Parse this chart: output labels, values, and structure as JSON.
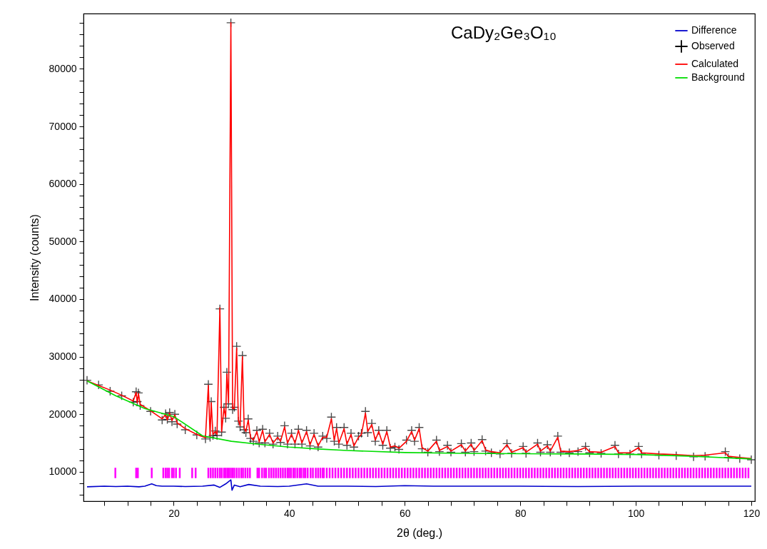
{
  "chart_data": {
    "type": "line",
    "title": "CaDy₂Ge₃O₁₀",
    "xlabel": "2θ (deg.)",
    "ylabel": "Intensity (counts)",
    "xlim": [
      5,
      120
    ],
    "ylim": [
      4900,
      89600
    ],
    "xticks": [
      {
        "value": 8,
        "label": null
      },
      {
        "value": 12,
        "label": null
      },
      {
        "value": 16,
        "label": null
      },
      20,
      {
        "value": 24,
        "label": null
      },
      {
        "value": 28,
        "label": null
      },
      {
        "value": 32,
        "label": null
      },
      {
        "value": 36,
        "label": null
      },
      40,
      {
        "value": 44,
        "label": null
      },
      {
        "value": 48,
        "label": null
      },
      {
        "value": 52,
        "label": null
      },
      {
        "value": 56,
        "label": null
      },
      60,
      {
        "value": 64,
        "label": null
      },
      {
        "value": 68,
        "label": null
      },
      {
        "value": 72,
        "label": null
      },
      {
        "value": 76,
        "label": null
      },
      80,
      {
        "value": 84,
        "label": null
      },
      {
        "value": 88,
        "label": null
      },
      {
        "value": 92,
        "label": null
      },
      {
        "value": 96,
        "label": null
      },
      100,
      {
        "value": 104,
        "label": null
      },
      {
        "value": 108,
        "label": null
      },
      {
        "value": 112,
        "label": null
      },
      {
        "value": 116,
        "label": null
      },
      120
    ],
    "yticks": [
      {
        "value": 6000,
        "label": null
      },
      {
        "value": 8000,
        "label": null
      },
      10000,
      {
        "value": 12000,
        "label": null
      },
      {
        "value": 14000,
        "label": null
      },
      {
        "value": 16000,
        "label": null
      },
      {
        "value": 18000,
        "label": null
      },
      20000,
      {
        "value": 22000,
        "label": null
      },
      {
        "value": 24000,
        "label": null
      },
      {
        "value": 26000,
        "label": null
      },
      {
        "value": 28000,
        "label": null
      },
      30000,
      {
        "value": 32000,
        "label": null
      },
      {
        "value": 34000,
        "label": null
      },
      {
        "value": 36000,
        "label": null
      },
      {
        "value": 38000,
        "label": null
      },
      40000,
      {
        "value": 42000,
        "label": null
      },
      {
        "value": 44000,
        "label": null
      },
      {
        "value": 46000,
        "label": null
      },
      {
        "value": 48000,
        "label": null
      },
      50000,
      {
        "value": 52000,
        "label": null
      },
      {
        "value": 54000,
        "label": null
      },
      {
        "value": 56000,
        "label": null
      },
      {
        "value": 58000,
        "label": null
      },
      60000,
      {
        "value": 62000,
        "label": null
      },
      {
        "value": 64000,
        "label": null
      },
      {
        "value": 66000,
        "label": null
      },
      {
        "value": 68000,
        "label": null
      },
      70000,
      {
        "value": 72000,
        "label": null
      },
      {
        "value": 74000,
        "label": null
      },
      {
        "value": 76000,
        "label": null
      },
      {
        "value": 78000,
        "label": null
      },
      80000,
      {
        "value": 82000,
        "label": null
      },
      {
        "value": 84000,
        "label": null
      },
      {
        "value": 86000,
        "label": null
      },
      {
        "value": 88000,
        "label": null
      }
    ],
    "grid": false,
    "legend": "top right",
    "series": [
      {
        "name": "Difference",
        "color": "#0000cc",
        "x": [
          5,
          8,
          10,
          12,
          14,
          15,
          16.2,
          17,
          18,
          20,
          22,
          25,
          27,
          28,
          29,
          29.9,
          30.1,
          30.5,
          31.5,
          33,
          35,
          38,
          40,
          43,
          45,
          50,
          55,
          60,
          65,
          70,
          80,
          90,
          100,
          110,
          120
        ],
        "values": [
          7400,
          7500,
          7450,
          7500,
          7400,
          7500,
          7900,
          7600,
          7500,
          7500,
          7450,
          7500,
          7700,
          7300,
          7900,
          8600,
          6800,
          7700,
          7400,
          7800,
          7500,
          7450,
          7500,
          7900,
          7500,
          7500,
          7450,
          7600,
          7500,
          7500,
          7500,
          7450,
          7500,
          7500,
          7500
        ]
      },
      {
        "name": "Observed",
        "type": "scatter",
        "marker": "cross",
        "color": "#000000",
        "x": [
          5,
          7,
          9,
          11,
          13,
          13.5,
          13.7,
          13.9,
          14.2,
          16,
          18,
          18.6,
          18.9,
          19.3,
          19.7,
          20.2,
          20.6,
          22,
          24,
          25.5,
          26.0,
          26.3,
          26.5,
          26.8,
          27.2,
          27.5,
          28.0,
          28.3,
          28.7,
          29.0,
          29.2,
          29.5,
          29.9,
          30.2,
          30.5,
          30.9,
          31.2,
          31.5,
          31.9,
          32.2,
          32.5,
          32.9,
          33.3,
          33.8,
          34.4,
          34.8,
          35.4,
          35.8,
          36.6,
          37.2,
          38.0,
          38.5,
          39.2,
          39.7,
          40.4,
          41.0,
          41.6,
          42.2,
          43.0,
          43.6,
          44.3,
          45.0,
          45.8,
          46.5,
          47.3,
          47.8,
          48.2,
          48.6,
          49.5,
          50.0,
          50.7,
          51.2,
          52.0,
          52.5,
          53.2,
          53.6,
          54.3,
          54.9,
          55.5,
          56.2,
          56.9,
          57.5,
          58.3,
          59,
          60.3,
          61.2,
          61.7,
          62.5,
          63.0,
          64,
          65.5,
          66,
          67.4,
          68,
          69.8,
          70.5,
          71.5,
          72,
          73.4,
          74,
          75,
          76.5,
          77.7,
          78.5,
          80.5,
          81,
          83,
          83.5,
          84.7,
          85.2,
          86.5,
          87,
          88.5,
          90,
          91.3,
          92,
          94,
          96.4,
          97,
          99,
          100.5,
          101,
          104,
          107,
          110,
          112,
          115.5,
          116,
          118,
          120
        ],
        "values": [
          25900,
          25100,
          24000,
          23200,
          22100,
          23900,
          22200,
          23700,
          21500,
          20500,
          19000,
          20100,
          19100,
          20300,
          18700,
          20000,
          18300,
          17300,
          16400,
          15700,
          25200,
          16000,
          22200,
          16300,
          17100,
          16300,
          38300,
          16900,
          21200,
          19300,
          27300,
          21800,
          88000,
          20800,
          21200,
          31800,
          18800,
          17800,
          30200,
          17300,
          16800,
          19200,
          15800,
          15300,
          17200,
          15000,
          17400,
          15000,
          16700,
          14800,
          16200,
          15100,
          18000,
          14800,
          16700,
          14800,
          17400,
          14800,
          17200,
          14500,
          16700,
          14300,
          16200,
          15800,
          19500,
          15300,
          17700,
          14800,
          17700,
          14600,
          16700,
          14300,
          16200,
          16700,
          20500,
          16800,
          18400,
          15300,
          17200,
          14600,
          17200,
          14100,
          14300,
          13900,
          15500,
          17200,
          15300,
          17700,
          14000,
          13400,
          15500,
          13500,
          14600,
          13400,
          14900,
          13400,
          15000,
          13500,
          15600,
          13600,
          13300,
          13100,
          14900,
          13200,
          14400,
          13200,
          15000,
          13400,
          14700,
          13400,
          16200,
          13400,
          13300,
          13500,
          14400,
          13300,
          13200,
          14600,
          13100,
          13100,
          14400,
          13100,
          12900,
          12800,
          12600,
          12700,
          13500,
          12500,
          12300,
          12100
        ]
      },
      {
        "name": "Calculated",
        "color": "#ff0000",
        "x": [
          5,
          7,
          9,
          11,
          13,
          13.5,
          13.7,
          13.9,
          14.2,
          16,
          18,
          18.6,
          18.9,
          19.3,
          19.7,
          20.2,
          20.6,
          22,
          24,
          25.5,
          26.0,
          26.3,
          26.5,
          26.8,
          27.2,
          27.5,
          28.0,
          28.3,
          28.7,
          29.0,
          29.2,
          29.5,
          29.9,
          30.2,
          30.5,
          30.9,
          31.2,
          31.5,
          31.9,
          32.2,
          32.5,
          32.9,
          33.3,
          33.8,
          34.4,
          34.8,
          35.4,
          35.8,
          36.6,
          37.2,
          38.0,
          38.5,
          39.2,
          39.7,
          40.4,
          41.0,
          41.6,
          42.2,
          43.0,
          43.6,
          44.3,
          45.0,
          45.8,
          46.5,
          47.3,
          47.8,
          48.2,
          48.6,
          49.5,
          50.0,
          50.7,
          51.2,
          52.0,
          52.5,
          53.2,
          53.6,
          54.3,
          54.9,
          55.5,
          56.2,
          56.9,
          57.5,
          58.3,
          59,
          60.3,
          61.2,
          61.7,
          62.5,
          63.0,
          64,
          65.5,
          66,
          67.4,
          68,
          69.8,
          70.5,
          71.5,
          72,
          73.4,
          74,
          75,
          76.5,
          77.7,
          78.5,
          80.5,
          81,
          83,
          83.5,
          84.7,
          85.2,
          86.5,
          87,
          88.5,
          90,
          91.3,
          92,
          94,
          96.4,
          97,
          99,
          100.5,
          101,
          104,
          107,
          110,
          112,
          115.5,
          116,
          118,
          120
        ],
        "values": [
          25800,
          25000,
          24200,
          23300,
          22300,
          23800,
          22000,
          23600,
          21700,
          20600,
          19200,
          20000,
          19000,
          20200,
          18900,
          19900,
          18500,
          17500,
          16500,
          15900,
          25000,
          16200,
          22000,
          16500,
          17000,
          16500,
          38500,
          17000,
          21000,
          19500,
          27000,
          22000,
          88000,
          21000,
          21000,
          31500,
          19000,
          18000,
          30000,
          17500,
          17000,
          19000,
          16000,
          15500,
          17000,
          15200,
          17200,
          15200,
          16500,
          15000,
          16000,
          15300,
          17800,
          15000,
          16500,
          15000,
          17200,
          15000,
          17000,
          14700,
          16500,
          14500,
          16000,
          16000,
          19200,
          15500,
          17500,
          15000,
          17500,
          14800,
          16500,
          14500,
          16000,
          16500,
          20200,
          17000,
          18200,
          15500,
          17000,
          14800,
          17000,
          14300,
          14500,
          14100,
          15300,
          17000,
          15500,
          17500,
          14200,
          13600,
          15300,
          13700,
          14400,
          13600,
          14700,
          13600,
          14800,
          13700,
          15400,
          13800,
          13500,
          13300,
          14700,
          13400,
          14200,
          13400,
          14800,
          13600,
          14500,
          13600,
          16000,
          13600,
          13500,
          13700,
          14200,
          13500,
          13400,
          14400,
          13300,
          13300,
          14200,
          13300,
          13100,
          13000,
          12800,
          12900,
          13300,
          12700,
          12500,
          12300
        ]
      },
      {
        "name": "Background",
        "color": "#00dd00",
        "x": [
          5,
          10,
          15,
          20,
          25,
          30,
          35,
          40,
          45,
          50,
          60,
          70,
          80,
          90,
          100,
          110,
          120
        ],
        "values": [
          25800,
          23200,
          21000,
          19600,
          16250,
          15300,
          14750,
          14300,
          13970,
          13700,
          13350,
          13200,
          13140,
          13100,
          13010,
          12700,
          12230
        ]
      },
      {
        "type": "bar",
        "color": "#ff00ff",
        "x": [
          9.9,
          13.5,
          13.8,
          16.2,
          18.2,
          18.6,
          18.9,
          19.2,
          19.7,
          20.0,
          20.4,
          21.05,
          23.2,
          23.8,
          26.0,
          26.4,
          26.8,
          27.2,
          27.6,
          28.0,
          28.3,
          28.7,
          29.0,
          29.3,
          29.6,
          29.9,
          30.2,
          30.5,
          30.9,
          31.3,
          31.7,
          32.0,
          32.4,
          32.8,
          33.2,
          34.5,
          34.8,
          35.3,
          35.7,
          36.0,
          36.5,
          36.9,
          37.3,
          37.7,
          38.1,
          38.5,
          38.9,
          39.3,
          39.7,
          40.0,
          40.3,
          40.7,
          41.0,
          41.4,
          41.8,
          42.1,
          42.5,
          42.8,
          43.2,
          43.7,
          44.1,
          44.6,
          45.0,
          45.4,
          45.8,
          46.0,
          46.5,
          47.0,
          47.5,
          48.0,
          48.5,
          49.0,
          49.5,
          50.0,
          50.5,
          51.0,
          51.5,
          52.0,
          52.5,
          53.0,
          53.5,
          54.0,
          54.5,
          55.0,
          55.5,
          56.0,
          56.5,
          57.0,
          57.5,
          58.0,
          58.5,
          59.0,
          59.5,
          60.0,
          60.5,
          61.0,
          61.5,
          62.0,
          62.5,
          63.0,
          63.5,
          64.0,
          64.5,
          65.0,
          65.5,
          66.0,
          66.5,
          67.0,
          67.5,
          68.0,
          68.5,
          69.0,
          69.5,
          70.0,
          70.5,
          71.0,
          71.5,
          72.0,
          72.5,
          73.0,
          73.5,
          74.0,
          74.5,
          75.0,
          75.5,
          76.0,
          76.5,
          77.0,
          77.5,
          78.0,
          78.5,
          79.0,
          79.5,
          80.0,
          80.5,
          81.0,
          81.5,
          82.0,
          82.5,
          83.0,
          83.5,
          84.0,
          84.5,
          85.0,
          85.5,
          86.0,
          86.5,
          87.0,
          87.5,
          88.0,
          88.5,
          89.0,
          89.5,
          90.0,
          90.5,
          91.0,
          91.5,
          92.0,
          92.5,
          93.0,
          93.5,
          94.0,
          94.5,
          95.0,
          95.5,
          96.0,
          96.5,
          97.0,
          97.5,
          98.0,
          98.5,
          99.0,
          99.5,
          100.0,
          100.5,
          101.0,
          101.5,
          102.0,
          102.5,
          103.0,
          103.5,
          104.0,
          104.5,
          105.0,
          105.5,
          106.0,
          106.5,
          107.0,
          107.5,
          108.0,
          108.5,
          109.0,
          109.5,
          110.0,
          110.5,
          111.0,
          111.5,
          112.0,
          112.5,
          113.0,
          113.5,
          114.0,
          114.5,
          115.0,
          115.5,
          116.0,
          116.5,
          117.0,
          117.5,
          118.0,
          118.5,
          119.0,
          119.5
        ],
        "base": [
          8900,
          8900,
          8900,
          8900,
          8900,
          8900,
          8900,
          8900,
          8900,
          8900,
          8900,
          8900,
          8900,
          8900,
          8900,
          8900,
          8900,
          8900,
          8900,
          8900,
          8900,
          8900,
          8900,
          8900,
          8900,
          8900,
          8900,
          8900,
          8900,
          8900,
          8900,
          8900,
          8900,
          8900,
          8900,
          8900,
          8900,
          8900,
          8900,
          8900,
          8900,
          8900,
          8900,
          8900,
          8900,
          8900,
          8900,
          8900,
          8900,
          8900,
          8900,
          8900,
          8900,
          8900,
          8900,
          8900,
          8900,
          8900,
          8900,
          8900,
          8900,
          8900,
          8900,
          8900,
          8900,
          8900,
          8900,
          8900,
          8900,
          8900,
          8900,
          8900,
          8900,
          8900,
          8900,
          8900,
          8900,
          8900,
          8900,
          8900,
          8900,
          8900,
          8900,
          8900,
          8900,
          8900,
          8900,
          8900,
          8900,
          8900,
          8900,
          8900,
          8900,
          8900,
          8900,
          8900,
          8900,
          8900,
          8900,
          8900,
          8900,
          8900,
          8900,
          8900,
          8900,
          8900,
          8900,
          8900,
          8900,
          8900,
          8900,
          8900,
          8900,
          8900,
          8900,
          8900,
          8900,
          8900,
          8900,
          8900,
          8900,
          8900,
          8900,
          8900,
          8900,
          8900,
          8900,
          8900,
          8900,
          8900,
          8900,
          8900,
          8900,
          8900,
          8900,
          8900,
          8900,
          8900,
          8900,
          8900,
          8900,
          8900,
          8900,
          8900,
          8900,
          8900,
          8900,
          8900,
          8900,
          8900,
          8900,
          8900,
          8900,
          8900,
          8900,
          8900,
          8900,
          8900,
          8900,
          8900,
          8900,
          8900,
          8900,
          8900,
          8900,
          8900,
          8900,
          8900,
          8900,
          8900,
          8900,
          8900,
          8900,
          8900,
          8900,
          8900,
          8900,
          8900,
          8900,
          8900,
          8900,
          8900,
          8900,
          8900,
          8900,
          8900,
          8900,
          8900,
          8900,
          8900,
          8900,
          8900,
          8900,
          8900,
          8900,
          8900,
          8900,
          8900,
          8900,
          8900,
          8900,
          8900,
          8900,
          8900,
          8900,
          8900,
          8900,
          8900,
          8900,
          8900,
          8900,
          8900,
          8900
        ],
        "values": [
          1800,
          1800,
          1800,
          1800,
          1800,
          1800,
          1800,
          1800,
          1800,
          1800,
          1800,
          1800,
          1800,
          1800,
          1800,
          1800,
          1800,
          1800,
          1800,
          1800,
          1800,
          1800,
          1800,
          1800,
          1800,
          1800,
          1800,
          1800,
          1800,
          1800,
          1800,
          1800,
          1800,
          1800,
          1800,
          1800,
          1800,
          1800,
          1800,
          1800,
          1800,
          1800,
          1800,
          1800,
          1800,
          1800,
          1800,
          1800,
          1800,
          1800,
          1800,
          1800,
          1800,
          1800,
          1800,
          1800,
          1800,
          1800,
          1800,
          1800,
          1800,
          1800,
          1800,
          1800,
          1800,
          1800,
          1800,
          1800,
          1800,
          1800,
          1800,
          1800,
          1800,
          1800,
          1800,
          1800,
          1800,
          1800,
          1800,
          1800,
          1800,
          1800,
          1800,
          1800,
          1800,
          1800,
          1800,
          1800,
          1800,
          1800,
          1800,
          1800,
          1800,
          1800,
          1800,
          1800,
          1800,
          1800,
          1800,
          1800,
          1800,
          1800,
          1800,
          1800,
          1800,
          1800,
          1800,
          1800,
          1800,
          1800,
          1800,
          1800,
          1800,
          1800,
          1800,
          1800,
          1800,
          1800,
          1800,
          1800,
          1800,
          1800,
          1800,
          1800,
          1800,
          1800,
          1800,
          1800,
          1800,
          1800,
          1800,
          1800,
          1800,
          1800,
          1800,
          1800,
          1800,
          1800,
          1800,
          1800,
          1800,
          1800,
          1800,
          1800,
          1800,
          1800,
          1800,
          1800,
          1800,
          1800,
          1800,
          1800,
          1800,
          1800,
          1800,
          1800,
          1800,
          1800,
          1800,
          1800,
          1800,
          1800,
          1800,
          1800,
          1800,
          1800,
          1800,
          1800,
          1800,
          1800,
          1800,
          1800,
          1800,
          1800,
          1800,
          1800,
          1800,
          1800,
          1800,
          1800,
          1800,
          1800,
          1800,
          1800,
          1800,
          1800,
          1800,
          1800,
          1800,
          1800,
          1800,
          1800,
          1800,
          1800,
          1800,
          1800,
          1800,
          1800,
          1800,
          1800,
          1800,
          1800,
          1800,
          1800,
          1800,
          1800,
          1800,
          1800,
          1800,
          1800,
          1800,
          1800,
          1800
        ]
      }
    ]
  }
}
